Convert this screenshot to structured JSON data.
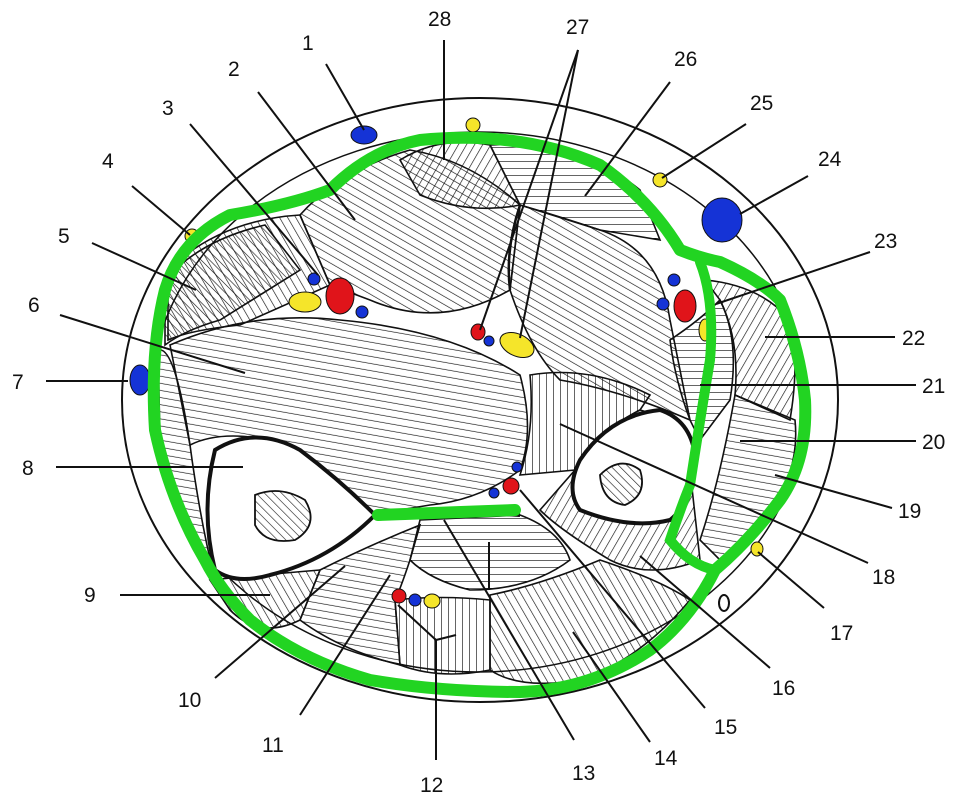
{
  "figure": {
    "labels": [
      "1",
      "2",
      "3",
      "4",
      "5",
      "6",
      "7",
      "8",
      "9",
      "10",
      "11",
      "12",
      "13",
      "14",
      "15",
      "16",
      "17",
      "18",
      "19",
      "20",
      "21",
      "22",
      "23",
      "24",
      "25",
      "26",
      "27",
      "28"
    ]
  },
  "colors": {
    "outline": "#111111",
    "vein": "#1533d6",
    "artery": "#e0141a",
    "nerve": "#f5e52a",
    "highlight": "#22d422"
  },
  "icons": {
    "vein": "blue-oval",
    "artery": "red-oval",
    "nerve": "yellow-oval"
  }
}
